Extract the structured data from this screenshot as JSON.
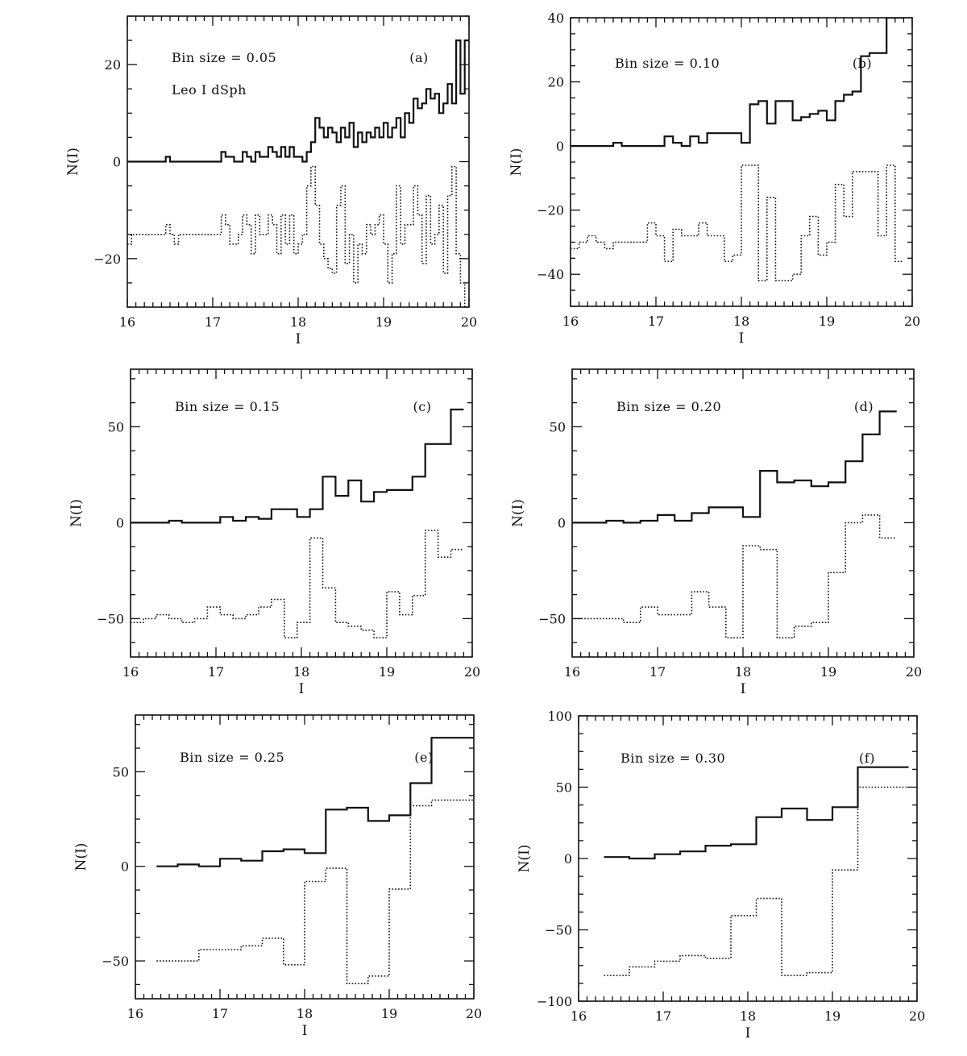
{
  "chart_data": [
    {
      "type": "line",
      "step": true,
      "panel_label": "(a)",
      "annotations": [
        "Bin size = 0.05",
        "Leo I dSph"
      ],
      "xlabel": "I",
      "ylabel": "N(I)",
      "xlim": [
        16,
        20
      ],
      "ylim": [
        -30,
        30
      ],
      "xticks": [
        16,
        17,
        18,
        19,
        20
      ],
      "yticks": [
        -20,
        0,
        20
      ],
      "series": [
        {
          "style": "solid",
          "x": [
            16.0,
            16.05,
            16.1,
            16.15,
            16.2,
            16.25,
            16.3,
            16.35,
            16.4,
            16.45,
            16.5,
            16.55,
            16.6,
            16.65,
            16.7,
            16.75,
            16.8,
            16.85,
            16.9,
            16.95,
            17.0,
            17.05,
            17.1,
            17.15,
            17.2,
            17.25,
            17.3,
            17.35,
            17.4,
            17.45,
            17.5,
            17.55,
            17.6,
            17.65,
            17.7,
            17.75,
            17.8,
            17.85,
            17.9,
            17.95,
            18.0,
            18.05,
            18.1,
            18.15,
            18.2,
            18.25,
            18.3,
            18.35,
            18.4,
            18.45,
            18.5,
            18.55,
            18.6,
            18.65,
            18.7,
            18.75,
            18.8,
            18.85,
            18.9,
            18.95,
            19.0,
            19.05,
            19.1,
            19.15,
            19.2,
            19.25,
            19.3,
            19.35,
            19.4,
            19.45,
            19.5,
            19.55,
            19.6,
            19.65,
            19.7,
            19.75,
            19.8,
            19.85,
            19.9,
            19.95
          ],
          "y": [
            0,
            0,
            0,
            0,
            0,
            0,
            0,
            0,
            0,
            1,
            0,
            0,
            0,
            0,
            0,
            0,
            0,
            0,
            0,
            0,
            0,
            0,
            2,
            1,
            1,
            0,
            0,
            2,
            1,
            0,
            2,
            1,
            1,
            3,
            2,
            1,
            3,
            1,
            3,
            1,
            1,
            0,
            2,
            4,
            9,
            7,
            5,
            7,
            6,
            4,
            7,
            5,
            8,
            3,
            6,
            4,
            6,
            5,
            7,
            5,
            8,
            5,
            7,
            9,
            5,
            10,
            8,
            13,
            11,
            12,
            15,
            13,
            14,
            10,
            12,
            16,
            12,
            25,
            14,
            25
          ]
        },
        {
          "style": "dotted",
          "x": [
            16.0,
            16.05,
            16.1,
            16.15,
            16.2,
            16.25,
            16.3,
            16.35,
            16.4,
            16.45,
            16.5,
            16.55,
            16.6,
            16.65,
            16.7,
            16.75,
            16.8,
            16.85,
            16.9,
            16.95,
            17.0,
            17.05,
            17.1,
            17.15,
            17.2,
            17.25,
            17.3,
            17.35,
            17.4,
            17.45,
            17.5,
            17.55,
            17.6,
            17.65,
            17.7,
            17.75,
            17.8,
            17.85,
            17.9,
            17.95,
            18.0,
            18.05,
            18.1,
            18.15,
            18.2,
            18.25,
            18.3,
            18.35,
            18.4,
            18.45,
            18.5,
            18.55,
            18.6,
            18.65,
            18.7,
            18.75,
            18.8,
            18.85,
            18.9,
            18.95,
            19.0,
            19.05,
            19.1,
            19.15,
            19.2,
            19.25,
            19.3,
            19.35,
            19.4,
            19.45,
            19.5,
            19.55,
            19.6,
            19.65,
            19.7,
            19.75,
            19.8,
            19.85,
            19.9,
            19.95
          ],
          "y": [
            -17,
            -15,
            -15,
            -15,
            -15,
            -15,
            -15,
            -15,
            -15,
            -13,
            -15,
            -17,
            -15,
            -15,
            -15,
            -15,
            -15,
            -15,
            -15,
            -15,
            -15,
            -15,
            -11,
            -13,
            -17,
            -17,
            -15,
            -11,
            -13,
            -19,
            -11,
            -15,
            -15,
            -11,
            -13,
            -19,
            -11,
            -17,
            -11,
            -19,
            -17,
            -15,
            -5,
            -1,
            -9,
            -17,
            -20,
            -22,
            -23,
            -9,
            -5,
            -21,
            -15,
            -25,
            -17,
            -19,
            -13,
            -15,
            -13,
            -11,
            -17,
            -25,
            -19,
            -5,
            -17,
            -13,
            -13,
            -5,
            -11,
            -21,
            -7,
            -17,
            -15,
            -9,
            -23,
            -7,
            -1,
            -19,
            -25,
            -30
          ]
        }
      ]
    },
    {
      "type": "line",
      "step": true,
      "panel_label": "(b)",
      "annotations": [
        "Bin size = 0.10"
      ],
      "xlabel": "I",
      "ylabel": "N(I)",
      "xlim": [
        16,
        20
      ],
      "ylim": [
        -50,
        40
      ],
      "xticks": [
        16,
        17,
        18,
        19,
        20
      ],
      "yticks": [
        -40,
        -20,
        0,
        20,
        40
      ],
      "series": [
        {
          "style": "solid",
          "x": [
            16.0,
            16.1,
            16.2,
            16.3,
            16.4,
            16.5,
            16.6,
            16.7,
            16.8,
            16.9,
            17.0,
            17.1,
            17.2,
            17.3,
            17.4,
            17.5,
            17.6,
            17.7,
            17.8,
            17.9,
            18.0,
            18.1,
            18.2,
            18.3,
            18.4,
            18.5,
            18.6,
            18.7,
            18.8,
            18.9,
            19.0,
            19.1,
            19.2,
            19.3,
            19.4,
            19.5,
            19.6,
            19.7,
            19.8
          ],
          "y": [
            0,
            0,
            0,
            0,
            0,
            1,
            0,
            0,
            0,
            0,
            0,
            3,
            1,
            0,
            3,
            1,
            4,
            4,
            4,
            4,
            1,
            13,
            14,
            7,
            14,
            14,
            8,
            9,
            10,
            11,
            8,
            14,
            16,
            17,
            28,
            29,
            29,
            40,
            40
          ]
        },
        {
          "style": "dotted",
          "x": [
            16.0,
            16.1,
            16.2,
            16.3,
            16.4,
            16.5,
            16.6,
            16.7,
            16.8,
            16.9,
            17.0,
            17.1,
            17.2,
            17.3,
            17.4,
            17.5,
            17.6,
            17.7,
            17.8,
            17.9,
            18.0,
            18.1,
            18.2,
            18.3,
            18.4,
            18.5,
            18.6,
            18.7,
            18.8,
            18.9,
            19.0,
            19.1,
            19.2,
            19.3,
            19.4,
            19.5,
            19.6,
            19.7,
            19.8
          ],
          "y": [
            -32,
            -30,
            -28,
            -30,
            -32,
            -30,
            -30,
            -30,
            -30,
            -24,
            -28,
            -36,
            -26,
            -28,
            -28,
            -24,
            -28,
            -28,
            -36,
            -34,
            -6,
            -6,
            -42,
            -16,
            -42,
            -42,
            -40,
            -28,
            -22,
            -34,
            -30,
            -12,
            -22,
            -8,
            -8,
            -8,
            -28,
            -6,
            -36
          ]
        }
      ]
    },
    {
      "type": "line",
      "step": true,
      "panel_label": "(c)",
      "annotations": [
        "Bin size = 0.15"
      ],
      "xlabel": "I",
      "ylabel": "N(I)",
      "xlim": [
        16,
        20
      ],
      "ylim": [
        -70,
        80
      ],
      "xticks": [
        16,
        17,
        18,
        19,
        20
      ],
      "yticks": [
        -50,
        0,
        50
      ],
      "series": [
        {
          "style": "solid",
          "x": [
            16.0,
            16.15,
            16.3,
            16.45,
            16.6,
            16.75,
            16.9,
            17.05,
            17.2,
            17.35,
            17.5,
            17.65,
            17.8,
            17.95,
            18.1,
            18.25,
            18.4,
            18.55,
            18.7,
            18.85,
            19.0,
            19.15,
            19.3,
            19.45,
            19.6,
            19.75
          ],
          "y": [
            0,
            0,
            0,
            1,
            0,
            0,
            0,
            3,
            1,
            3,
            2,
            7,
            7,
            3,
            7,
            24,
            14,
            22,
            11,
            16,
            17,
            17,
            24,
            41,
            41,
            59
          ]
        },
        {
          "style": "dotted",
          "x": [
            16.0,
            16.15,
            16.3,
            16.45,
            16.6,
            16.75,
            16.9,
            17.05,
            17.2,
            17.35,
            17.5,
            17.65,
            17.8,
            17.95,
            18.1,
            18.25,
            18.4,
            18.55,
            18.7,
            18.85,
            19.0,
            19.15,
            19.3,
            19.45,
            19.6,
            19.75
          ],
          "y": [
            -52,
            -50,
            -48,
            -50,
            -52,
            -50,
            -44,
            -48,
            -50,
            -48,
            -44,
            -40,
            -60,
            -52,
            -8,
            -34,
            -52,
            -54,
            -56,
            -60,
            -36,
            -48,
            -38,
            -4,
            -18,
            -14
          ]
        }
      ]
    },
    {
      "type": "line",
      "step": true,
      "panel_label": "(d)",
      "annotations": [
        "Bin size = 0.20"
      ],
      "xlabel": "I",
      "ylabel": "N(I)",
      "xlim": [
        16,
        20
      ],
      "ylim": [
        -70,
        80
      ],
      "xticks": [
        16,
        17,
        18,
        19,
        20
      ],
      "yticks": [
        -50,
        0,
        50
      ],
      "series": [
        {
          "style": "solid",
          "x": [
            16.0,
            16.2,
            16.4,
            16.6,
            16.8,
            17.0,
            17.2,
            17.4,
            17.6,
            17.8,
            18.0,
            18.2,
            18.4,
            18.6,
            18.8,
            19.0,
            19.2,
            19.4,
            19.6
          ],
          "y": [
            0,
            0,
            1,
            0,
            1,
            4,
            1,
            5,
            8,
            8,
            3,
            27,
            21,
            22,
            19,
            21,
            32,
            46,
            58
          ]
        },
        {
          "style": "dotted",
          "x": [
            16.0,
            16.2,
            16.4,
            16.6,
            16.8,
            17.0,
            17.2,
            17.4,
            17.6,
            17.8,
            18.0,
            18.2,
            18.4,
            18.6,
            18.8,
            19.0,
            19.2,
            19.4,
            19.6
          ],
          "y": [
            -50,
            -50,
            -50,
            -52,
            -44,
            -48,
            -48,
            -36,
            -44,
            -60,
            -12,
            -14,
            -60,
            -54,
            -52,
            -26,
            0,
            4,
            -8
          ]
        }
      ]
    },
    {
      "type": "line",
      "step": true,
      "panel_label": "(e)",
      "annotations": [
        "Bin size = 0.25"
      ],
      "xlabel": "I",
      "ylabel": "N(I)",
      "xlim": [
        16,
        20
      ],
      "ylim": [
        -70,
        80
      ],
      "xticks": [
        16,
        17,
        18,
        19,
        20
      ],
      "yticks": [
        -50,
        0,
        50
      ],
      "series": [
        {
          "style": "solid",
          "x": [
            16.25,
            16.5,
            16.75,
            17.0,
            17.25,
            17.5,
            17.75,
            18.0,
            18.25,
            18.5,
            18.75,
            19.0,
            19.25,
            19.5,
            19.75
          ],
          "y": [
            0,
            1,
            0,
            4,
            3,
            8,
            9,
            7,
            30,
            31,
            24,
            27,
            44,
            68,
            68
          ]
        },
        {
          "style": "dotted",
          "x": [
            16.25,
            16.5,
            16.75,
            17.0,
            17.25,
            17.5,
            17.75,
            18.0,
            18.25,
            18.5,
            18.75,
            19.0,
            19.25,
            19.5,
            19.75
          ],
          "y": [
            -50,
            -50,
            -44,
            -44,
            -42,
            -38,
            -52,
            -8,
            -1,
            -62,
            -58,
            -12,
            32,
            35,
            35
          ]
        }
      ]
    },
    {
      "type": "line",
      "step": true,
      "panel_label": "(f)",
      "annotations": [
        "Bin size = 0.30"
      ],
      "xlabel": "I",
      "ylabel": "N(I)",
      "xlim": [
        16,
        20
      ],
      "ylim": [
        -100,
        100
      ],
      "xticks": [
        16,
        17,
        18,
        19,
        20
      ],
      "yticks": [
        -100,
        -50,
        0,
        50,
        100
      ],
      "series": [
        {
          "style": "solid",
          "x": [
            16.3,
            16.6,
            16.9,
            17.2,
            17.5,
            17.8,
            18.1,
            18.4,
            18.7,
            19.0,
            19.3,
            19.6
          ],
          "y": [
            1,
            0,
            3,
            5,
            9,
            10,
            29,
            35,
            27,
            36,
            64,
            64
          ]
        },
        {
          "style": "dotted",
          "x": [
            16.3,
            16.6,
            16.9,
            17.2,
            17.5,
            17.8,
            18.1,
            18.4,
            18.7,
            19.0,
            19.3,
            19.6
          ],
          "y": [
            -82,
            -76,
            -72,
            -68,
            -70,
            -40,
            -28,
            -82,
            -80,
            -8,
            50,
            50
          ]
        }
      ]
    }
  ]
}
